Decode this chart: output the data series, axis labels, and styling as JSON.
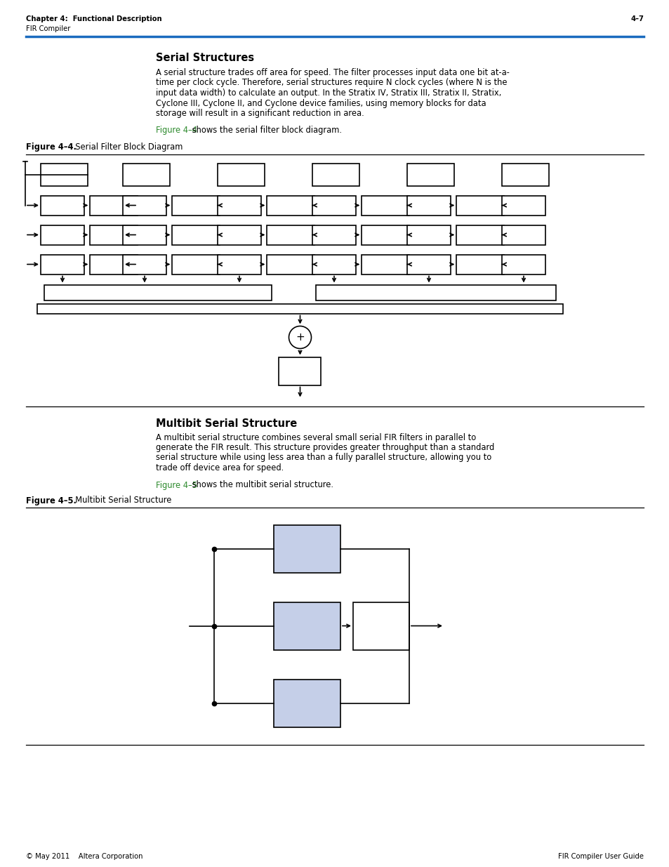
{
  "page_bg": "#ffffff",
  "header_left_bold": "Chapter 4:  Functional Description",
  "header_left_normal": "FIR Compiler",
  "header_right": "4–7",
  "header_line_color": "#1a6bbf",
  "section1_title": "Serial Structures",
  "section1_body_lines": [
    "A serial structure trades off area for speed. The filter processes input data one bit at-a-",
    "time per clock cycle. Therefore, serial structures require N clock cycles (where N is the",
    "input data width) to calculate an output. In the Stratix IV, Stratix III, Stratix II, Stratix,",
    "Cyclone III, Cyclone II, and Cyclone device families, using memory blocks for data",
    "storage will result in a significant reduction in area."
  ],
  "section1_ref": "Figure 4–4",
  "section1_ref_suffix": " shows the serial filter block diagram.",
  "fig4_label_bold": "Figure 4–4.",
  "fig4_label_normal": "  Serial Filter Block Diagram",
  "section2_title": "Multibit Serial Structure",
  "section2_body_lines": [
    "A multibit serial structure combines several small serial FIR filters in parallel to",
    "generate the FIR result. This structure provides greater throughput than a standard",
    "serial structure while using less area than a fully parallel structure, allowing you to",
    "trade off device area for speed."
  ],
  "section2_ref": "Figure 4–5",
  "section2_ref_suffix": " shows the multibit serial structure.",
  "fig5_label_bold": "Figure 4–5.",
  "fig5_label_normal": "  Multibit Serial Structure",
  "footer_left": "© May 2011    Altera Corporation",
  "footer_right": "FIR Compiler User Guide",
  "link_color": "#2d8a2d",
  "box_fill": "#c5cfe8",
  "text_color": "#000000",
  "lw": 1.2
}
